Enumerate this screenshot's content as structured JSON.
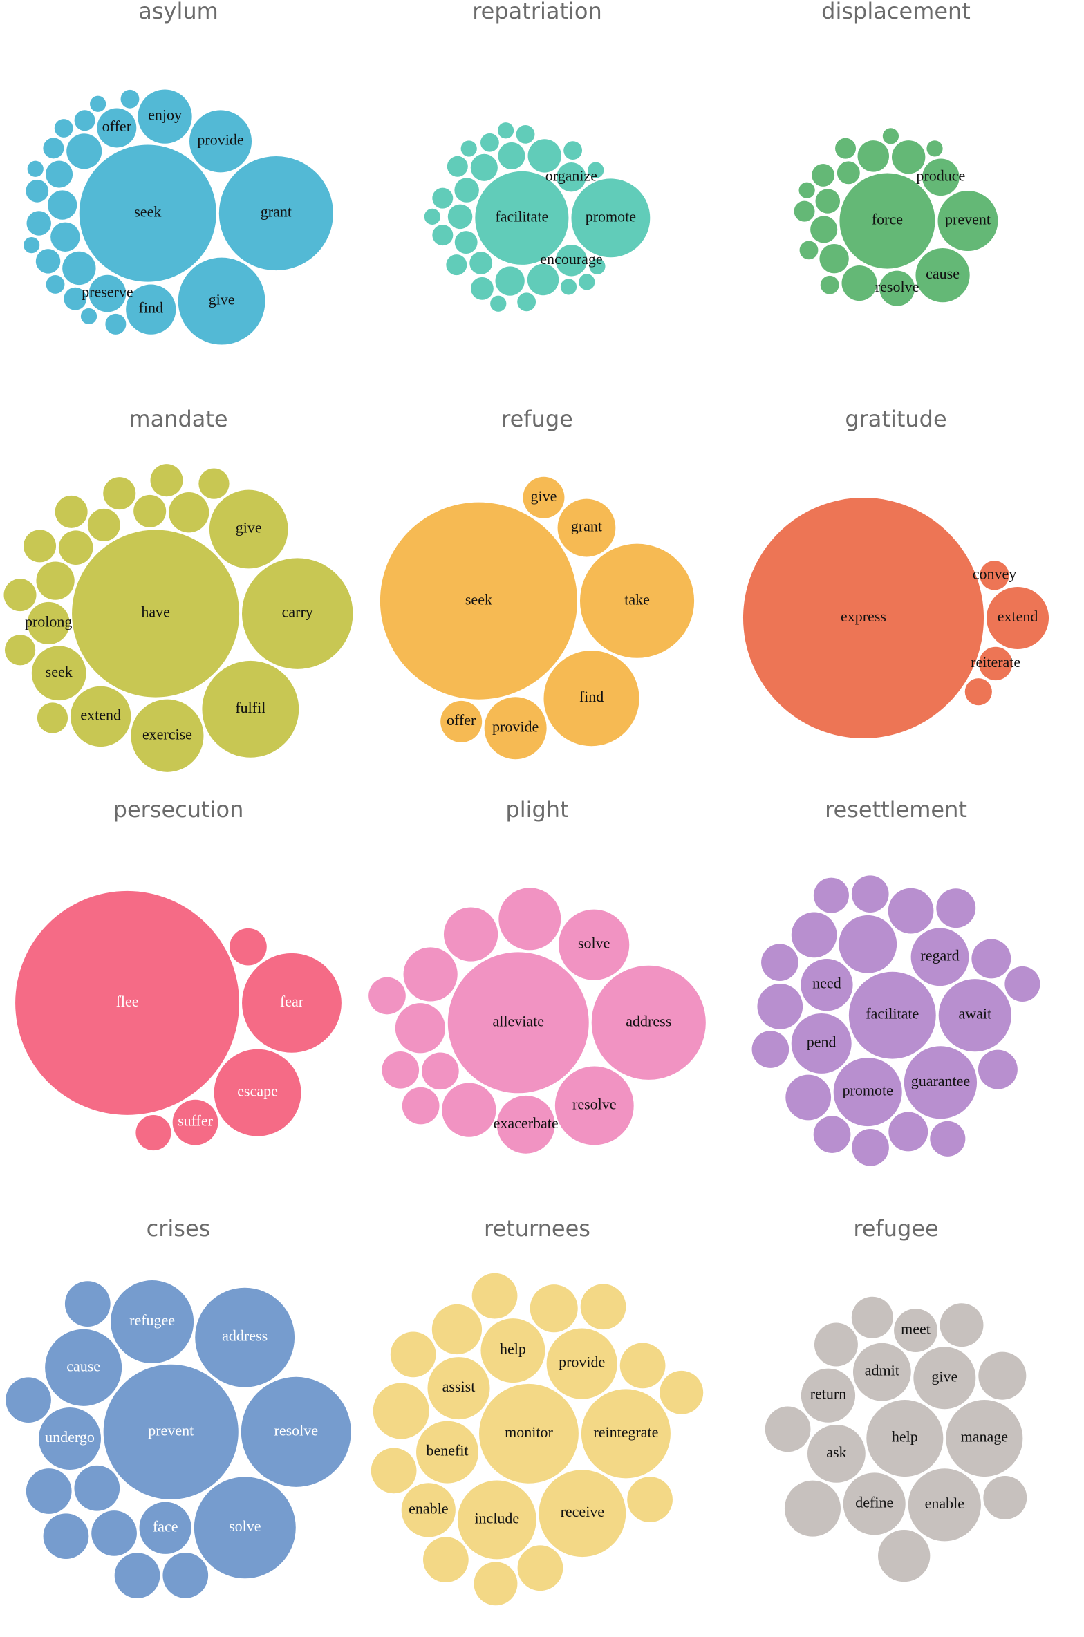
{
  "chart_data": [
    {
      "type": "bubble",
      "title": "asylum",
      "color": "#4ab5d3",
      "label_color": "#111111",
      "categories": [
        "seek",
        "grant",
        "give",
        "provide",
        "enjoy",
        "find",
        "offer",
        "preserve",
        null,
        null,
        null,
        null,
        null,
        null,
        null,
        null,
        null,
        null,
        null,
        null,
        null,
        null,
        null,
        null,
        null,
        null,
        null
      ],
      "values": [
        436,
        303,
        176,
        90,
        68,
        58,
        36,
        32,
        29,
        26,
        20,
        20,
        17,
        14,
        14,
        12,
        12,
        10,
        10,
        10,
        8,
        8,
        8,
        6,
        6,
        6,
        6
      ]
    },
    {
      "type": "bubble",
      "title": "repatriation",
      "color": "#58c9b5",
      "label_color": "#111111",
      "categories": [
        "facilitate",
        "promote",
        "encourage",
        "organize",
        null,
        null,
        null,
        null,
        null,
        null,
        null,
        null,
        null,
        null,
        null,
        null,
        null,
        null,
        null,
        null,
        null,
        null,
        null,
        null,
        null,
        null,
        null,
        null,
        null,
        null
      ],
      "values": [
        203,
        144,
        23,
        20,
        26,
        23,
        20,
        17,
        17,
        14,
        14,
        12,
        12,
        12,
        10,
        10,
        10,
        10,
        8,
        8,
        8,
        8,
        6,
        6,
        6,
        6,
        6,
        6,
        6,
        6
      ]
    },
    {
      "type": "bubble",
      "title": "displacement",
      "color": "#5cb46f",
      "label_color": "#111111",
      "categories": [
        "force",
        "prevent",
        "cause",
        "produce",
        "resolve",
        null,
        null,
        null,
        null,
        null,
        null,
        null,
        null,
        null,
        null,
        null,
        null,
        null,
        null,
        null
      ],
      "values": [
        212,
        84,
        68,
        32,
        29,
        29,
        26,
        23,
        20,
        17,
        14,
        12,
        12,
        10,
        10,
        8,
        8,
        6,
        6,
        6
      ]
    },
    {
      "type": "bubble",
      "title": "mandate",
      "color": "#c5c44a",
      "label_color": "#111111",
      "categories": [
        "have",
        "carry",
        "fulfil",
        "give",
        "exercise",
        "extend",
        "seek",
        "prolong",
        null,
        null,
        null,
        null,
        null,
        null,
        null,
        null,
        null,
        null,
        null,
        null,
        null
      ],
      "values": [
        689,
        303,
        230,
        152,
        130,
        90,
        73,
        44,
        40,
        36,
        29,
        26,
        26,
        26,
        26,
        26,
        26,
        26,
        23,
        23,
        23
      ]
    },
    {
      "type": "bubble",
      "title": "refuge",
      "color": "#f6b64a",
      "label_color": "#111111",
      "categories": [
        "seek",
        "take",
        "find",
        "provide",
        "grant",
        "offer",
        "give"
      ],
      "values": [
        903,
        303,
        212,
        90,
        78,
        40,
        40
      ]
    },
    {
      "type": "bubble",
      "title": "gratitude",
      "color": "#ec6e4c",
      "label_color": "#111111",
      "categories": [
        "express",
        "extend",
        "reiterate",
        "convey",
        null
      ],
      "values": [
        1346,
        90,
        26,
        20,
        17
      ]
    },
    {
      "type": "bubble",
      "title": "persecution",
      "color": "#f46380",
      "label_color": "#ffffff",
      "categories": [
        "flee",
        "fear",
        "escape",
        "suffer",
        null,
        null
      ],
      "values": [
        1166,
        230,
        176,
        48,
        32,
        29
      ]
    },
    {
      "type": "bubble",
      "title": "plight",
      "color": "#f08dbf",
      "label_color": "#111111",
      "categories": [
        "alleviate",
        "address",
        "resolve",
        "solve",
        "exacerbate",
        null,
        null,
        null,
        null,
        null,
        null,
        null,
        null,
        null
      ],
      "values": [
        462,
        303,
        144,
        116,
        78,
        90,
        68,
        68,
        68,
        58,
        32,
        32,
        32,
        32
      ]
    },
    {
      "type": "bubble",
      "title": "resettlement",
      "color": "#b489cc",
      "label_color": "#111111",
      "categories": [
        "facilitate",
        "await",
        "guarantee",
        "promote",
        "pend",
        "regard",
        "need",
        null,
        null,
        null,
        null,
        null,
        null,
        null,
        null,
        null,
        null,
        null,
        null,
        null,
        null,
        null,
        null,
        null
      ],
      "values": [
        176,
        123,
        123,
        109,
        84,
        78,
        63,
        78,
        48,
        48,
        48,
        48,
        36,
        36,
        36,
        36,
        32,
        32,
        32,
        32,
        32,
        29,
        29,
        29
      ]
    },
    {
      "type": "bubble",
      "title": "crises",
      "color": "#6f97cb",
      "label_color": "#ffffff",
      "categories": [
        "prevent",
        "resolve",
        "solve",
        "address",
        "refugee",
        "cause",
        "undergo",
        "face",
        null,
        null,
        null,
        null,
        null,
        null,
        null,
        null
      ],
      "values": [
        423,
        281,
        240,
        230,
        160,
        137,
        90,
        63,
        48,
        48,
        48,
        48,
        48,
        48,
        48,
        48
      ]
    },
    {
      "type": "bubble",
      "title": "returnees",
      "color": "#f2d680",
      "label_color": "#111111",
      "categories": [
        "monitor",
        "reintegrate",
        "receive",
        "include",
        "provide",
        "help",
        "assist",
        "benefit",
        "enable",
        null,
        null,
        null,
        null,
        null,
        null,
        null,
        null,
        null,
        null,
        null,
        null,
        null
      ],
      "values": [
        230,
        185,
        176,
        144,
        116,
        96,
        90,
        90,
        68,
        73,
        58,
        53,
        48,
        48,
        48,
        48,
        48,
        48,
        48,
        48,
        44,
        44
      ]
    },
    {
      "type": "bubble",
      "title": "refugee",
      "color": "#c4bebb",
      "label_color": "#111111",
      "categories": [
        "help",
        "manage",
        "enable",
        "give",
        "define",
        "admit",
        "ask",
        "return",
        "meet",
        null,
        null,
        null,
        null,
        null,
        null,
        null,
        null
      ],
      "values": [
        137,
        137,
        123,
        90,
        90,
        78,
        78,
        68,
        44,
        73,
        63,
        53,
        48,
        44,
        44,
        44,
        40
      ]
    }
  ]
}
